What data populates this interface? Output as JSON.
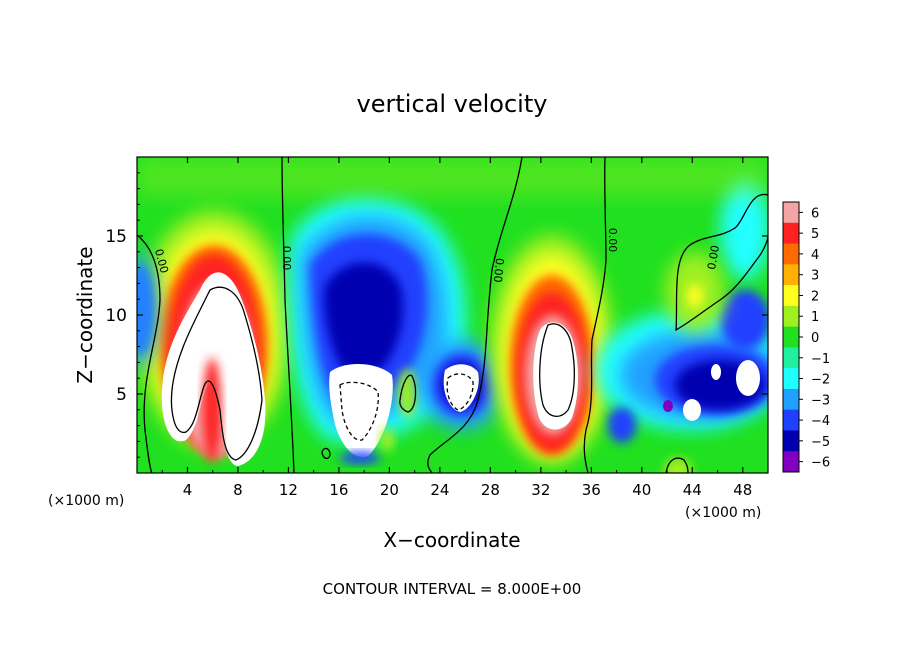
{
  "chart_data": {
    "type": "heatmap",
    "title": "vertical velocity",
    "xlabel": "X−coordinate",
    "ylabel": "Z−coordinate",
    "x_unit_label": "(×1000 m)",
    "xlim": [
      0,
      50
    ],
    "ylim": [
      0,
      20
    ],
    "x_ticks": [
      4,
      8,
      12,
      16,
      20,
      24,
      28,
      32,
      36,
      40,
      44,
      48
    ],
    "y_ticks": [
      5,
      10,
      15
    ],
    "footer": "CONTOUR INTERVAL = 8.000E+00",
    "contour_label": "0.00",
    "colorbar": {
      "levels": [
        6,
        5,
        4,
        3,
        2,
        1,
        0,
        -1,
        -2,
        -3,
        -4,
        -5,
        -6
      ],
      "tick_labels": [
        "6",
        "5",
        "4",
        "3",
        "2",
        "1",
        "0",
        "−1",
        "−2",
        "−3",
        "−4",
        "−5",
        "−6"
      ],
      "colors": [
        "#f4a4a4",
        "#ff2020",
        "#ff6a00",
        "#ffb000",
        "#ffff20",
        "#a0f020",
        "#20e020",
        "#20f0a0",
        "#20ffff",
        "#20a0ff",
        "#2040ff",
        "#0000b0",
        "#8000c0"
      ]
    },
    "features": [
      {
        "x": 7.0,
        "z": 6.0,
        "w": 5.5,
        "sign": "up"
      },
      {
        "x": 17.5,
        "z": 11.0,
        "w": -4.5,
        "sign": "down"
      },
      {
        "x": 18.5,
        "z": 3.5,
        "w": -6.5,
        "sign": "down"
      },
      {
        "x": 25.5,
        "z": 5.5,
        "w": -6.0,
        "sign": "down"
      },
      {
        "x": 33.0,
        "z": 6.5,
        "w": 5.5,
        "sign": "up"
      },
      {
        "x": 45.5,
        "z": 5.0,
        "w": -6.0,
        "sign": "down"
      },
      {
        "x": 44.0,
        "z": 11.5,
        "w": 1.5,
        "sign": "up"
      }
    ]
  }
}
